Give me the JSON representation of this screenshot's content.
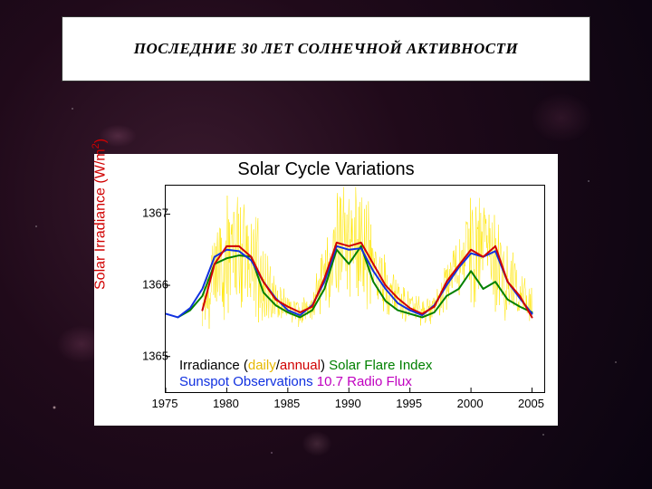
{
  "slide": {
    "title": "ПОСЛЕДНИЕ 30 ЛЕТ СОЛНЕЧНОЙ АКТИВНОСТИ",
    "title_fontsize": 17,
    "title_italic_bold": true,
    "background": {
      "base": "radial nebula purple/black",
      "colors": [
        "#3a1a2e",
        "#200a1a",
        "#0a0410"
      ]
    }
  },
  "chart": {
    "type": "line",
    "title": "Solar Cycle Variations",
    "title_fontsize": 20,
    "title_color": "#000000",
    "ylabel": "Solar Irradiance (W/m²)",
    "ylabel_html": "Solar Irradiance (W/m <sup>2</sup> )",
    "ylabel_color": "#d00000",
    "ylabel_fontsize": 16,
    "background_color": "#ffffff",
    "plot_border_color": "#000000",
    "x": {
      "lim": [
        1975,
        2006
      ],
      "ticks": [
        1975,
        1980,
        1985,
        1990,
        1995,
        2000,
        2005
      ],
      "tick_labels": [
        "1975",
        "1980",
        "1985",
        "1990",
        "1995",
        "2000",
        "2005"
      ],
      "tick_fontsize": 13
    },
    "y": {
      "lim": [
        1364.5,
        1367.4
      ],
      "ticks": [
        1365,
        1366,
        1367
      ],
      "tick_labels": [
        "1365",
        "1366",
        "1367"
      ],
      "tick_fontsize": 13
    },
    "series": {
      "irradiance_daily": {
        "label": "daily",
        "color": "#ffe600",
        "line_width": 0.5,
        "style": "high-freq noise band",
        "years": [
          1978,
          1979,
          1980,
          1981,
          1982,
          1983,
          1984,
          1985,
          1986,
          1987,
          1988,
          1989,
          1990,
          1991,
          1992,
          1993,
          1994,
          1995,
          1996,
          1997,
          1998,
          1999,
          2000,
          2001,
          2002,
          2003,
          2004,
          2005
        ],
        "mid": [
          1365.6,
          1366.2,
          1366.5,
          1366.5,
          1366.4,
          1366.0,
          1365.8,
          1365.7,
          1365.6,
          1365.7,
          1366.1,
          1366.6,
          1366.6,
          1366.6,
          1366.3,
          1366.0,
          1365.8,
          1365.7,
          1365.6,
          1365.7,
          1366.0,
          1366.3,
          1366.5,
          1366.5,
          1366.4,
          1366.1,
          1365.9,
          1365.7
        ],
        "amplitude": [
          0.3,
          0.7,
          0.9,
          0.9,
          0.9,
          0.6,
          0.3,
          0.2,
          0.2,
          0.2,
          0.5,
          0.9,
          0.8,
          0.9,
          0.7,
          0.4,
          0.3,
          0.2,
          0.2,
          0.2,
          0.4,
          0.6,
          0.8,
          0.8,
          0.8,
          0.6,
          0.4,
          0.3
        ]
      },
      "irradiance_annual": {
        "label": "annual",
        "color": "#d00000",
        "line_width": 2,
        "years": [
          1978,
          1979,
          1980,
          1981,
          1982,
          1983,
          1984,
          1985,
          1986,
          1987,
          1988,
          1989,
          1990,
          1991,
          1992,
          1993,
          1994,
          1995,
          1996,
          1997,
          1998,
          1999,
          2000,
          2001,
          2002,
          2003,
          2004,
          2005
        ],
        "values": [
          1365.65,
          1366.3,
          1366.55,
          1366.55,
          1366.4,
          1366.05,
          1365.8,
          1365.7,
          1365.62,
          1365.7,
          1366.1,
          1366.6,
          1366.55,
          1366.6,
          1366.3,
          1366.0,
          1365.82,
          1365.68,
          1365.6,
          1365.7,
          1366.05,
          1366.28,
          1366.5,
          1366.4,
          1366.55,
          1366.05,
          1365.85,
          1365.55
        ]
      },
      "sunspot_observations": {
        "label": "Sunspot Observations",
        "color": "#1030e0",
        "line_width": 2,
        "years": [
          1975,
          1976,
          1977,
          1978,
          1979,
          1980,
          1981,
          1982,
          1983,
          1984,
          1985,
          1986,
          1987,
          1988,
          1989,
          1990,
          1991,
          1992,
          1993,
          1994,
          1995,
          1996,
          1997,
          1998,
          1999,
          2000,
          2001,
          2002,
          2003,
          2004,
          2005
        ],
        "values": [
          1365.6,
          1365.55,
          1365.68,
          1365.95,
          1366.4,
          1366.5,
          1366.48,
          1366.35,
          1366.05,
          1365.82,
          1365.65,
          1365.58,
          1365.72,
          1366.05,
          1366.55,
          1366.5,
          1366.52,
          1366.2,
          1365.95,
          1365.75,
          1365.65,
          1365.58,
          1365.72,
          1366.0,
          1366.25,
          1366.45,
          1366.4,
          1366.48,
          1366.05,
          1365.82,
          1365.6
        ]
      },
      "solar_flare_index": {
        "label": "Solar Flare Index",
        "color": "#008000",
        "line_width": 2,
        "years": [
          1976,
          1977,
          1978,
          1979,
          1980,
          1981,
          1982,
          1983,
          1984,
          1985,
          1986,
          1987,
          1988,
          1989,
          1990,
          1991,
          1992,
          1993,
          1994,
          1995,
          1996,
          1997,
          1998,
          1999,
          2000,
          2001,
          2002,
          2003,
          2004,
          2005
        ],
        "values": [
          1365.55,
          1365.65,
          1365.85,
          1366.3,
          1366.38,
          1366.42,
          1366.4,
          1365.9,
          1365.72,
          1365.62,
          1365.55,
          1365.65,
          1365.95,
          1366.5,
          1366.3,
          1366.55,
          1366.05,
          1365.78,
          1365.65,
          1365.6,
          1365.55,
          1365.62,
          1365.85,
          1365.95,
          1366.2,
          1365.95,
          1366.05,
          1365.8,
          1365.7,
          1365.62
        ]
      },
      "radio_flux_107": {
        "label": "10.7 Radio Flux",
        "color": "#c000c0",
        "line_width": 2,
        "note": "present in legend; trace largely overlaps blue/red in figure",
        "years": [],
        "values": []
      }
    },
    "legend": {
      "fontsize": 15,
      "rows": [
        [
          {
            "text": "Irradiance (",
            "color": "#000000"
          },
          {
            "text": "daily",
            "color": "#e6b800"
          },
          {
            "text": "/",
            "color": "#000000"
          },
          {
            "text": "annual",
            "color": "#d00000"
          },
          {
            "text": ")",
            "color": "#000000"
          },
          {
            "text": "   ",
            "color": "#000000"
          },
          {
            "text": "Solar Flare Index",
            "color": "#008000"
          }
        ],
        [
          {
            "text": "Sunspot Observations",
            "color": "#1030e0"
          },
          {
            "text": "     ",
            "color": "#000000"
          },
          {
            "text": "10.7 Radio Flux",
            "color": "#c000c0"
          }
        ]
      ]
    }
  }
}
